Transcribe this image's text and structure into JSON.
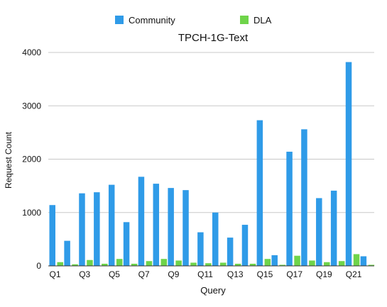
{
  "chart_data": {
    "type": "bar",
    "title": "TPCH-1G-Text",
    "xlabel": "Query",
    "ylabel": "Request Count",
    "ylim": [
      0,
      4000
    ],
    "yticks": [
      0,
      1000,
      2000,
      3000,
      4000
    ],
    "grid": true,
    "legend_position": "top",
    "categories": [
      "Q1",
      "Q2",
      "Q3",
      "Q4",
      "Q5",
      "Q6",
      "Q7",
      "Q8",
      "Q9",
      "Q10",
      "Q11",
      "Q12",
      "Q13",
      "Q14",
      "Q15",
      "Q16",
      "Q17",
      "Q18",
      "Q19",
      "Q20",
      "Q21",
      "Q22"
    ],
    "xtick_labels": [
      "Q1",
      "",
      "Q3",
      "",
      "Q5",
      "",
      "Q7",
      "",
      "Q9",
      "",
      "Q11",
      "",
      "Q13",
      "",
      "Q15",
      "",
      "Q17",
      "",
      "Q19",
      "",
      "Q21",
      ""
    ],
    "series": [
      {
        "name": "Community",
        "color": "#2f9be8",
        "values": [
          1140,
          470,
          1360,
          1380,
          1520,
          820,
          1670,
          1540,
          1460,
          1420,
          630,
          1000,
          530,
          770,
          2730,
          200,
          2140,
          2560,
          1270,
          1410,
          3820,
          180
        ]
      },
      {
        "name": "DLA",
        "color": "#6fd44a",
        "values": [
          70,
          30,
          110,
          40,
          130,
          40,
          90,
          130,
          100,
          60,
          50,
          60,
          40,
          40,
          130,
          20,
          190,
          100,
          70,
          90,
          220,
          20
        ]
      }
    ]
  }
}
